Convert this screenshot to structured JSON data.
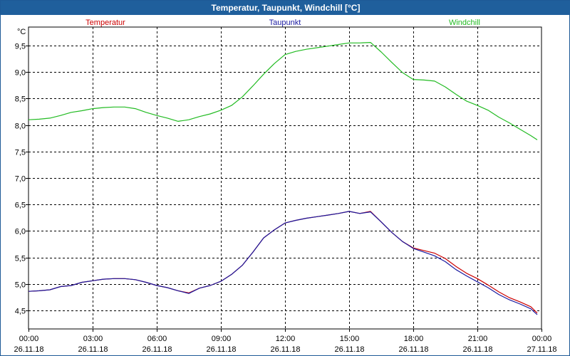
{
  "window": {
    "title": "Temperatur, Taupunkt, Windchill [°C]"
  },
  "chart_data": {
    "type": "line",
    "title": "Temperatur, Taupunkt, Windchill [°C]",
    "ylabel": "°C",
    "xlabel": "",
    "ylim": [
      4.15,
      9.85
    ],
    "xlim": [
      0,
      24
    ],
    "grid": true,
    "legend_placement": "top",
    "y_ticks": [
      "4,5",
      "5,0",
      "5,5",
      "6,0",
      "6,5",
      "7,0",
      "7,5",
      "8,0",
      "8,5",
      "9,0",
      "9,5"
    ],
    "y_tick_values": [
      4.5,
      5.0,
      5.5,
      6.0,
      6.5,
      7.0,
      7.5,
      8.0,
      8.5,
      9.0,
      9.5
    ],
    "x_ticks": [
      {
        "time": "00:00",
        "date": "26.11.18",
        "hour": 0
      },
      {
        "time": "03:00",
        "date": "26.11.18",
        "hour": 3
      },
      {
        "time": "06:00",
        "date": "26.11.18",
        "hour": 6
      },
      {
        "time": "09:00",
        "date": "26.11.18",
        "hour": 9
      },
      {
        "time": "12:00",
        "date": "26.11.18",
        "hour": 12
      },
      {
        "time": "15:00",
        "date": "26.11.18",
        "hour": 15
      },
      {
        "time": "18:00",
        "date": "26.11.18",
        "hour": 18
      },
      {
        "time": "21:00",
        "date": "26.11.18",
        "hour": 21
      },
      {
        "time": "00:00",
        "date": "27.11.18",
        "hour": 24
      }
    ],
    "x": [
      0,
      0.5,
      1,
      1.5,
      2,
      2.5,
      3,
      3.5,
      4,
      4.5,
      5,
      5.5,
      6,
      6.5,
      7,
      7.5,
      8,
      8.5,
      9,
      9.5,
      10,
      10.5,
      11,
      11.5,
      12,
      12.5,
      13,
      13.5,
      14,
      14.5,
      15,
      15.5,
      16,
      16.5,
      17,
      17.5,
      18,
      18.5,
      19,
      19.5,
      20,
      20.5,
      21,
      21.5,
      22,
      22.5,
      23,
      23.5,
      23.8
    ],
    "series": [
      {
        "name": "Temperatur",
        "color": "#cc0000",
        "values": [
          4.86,
          4.87,
          4.89,
          4.95,
          4.97,
          5.03,
          5.06,
          5.09,
          5.1,
          5.1,
          5.08,
          5.03,
          4.97,
          4.93,
          4.87,
          4.83,
          4.92,
          4.97,
          5.05,
          5.18,
          5.35,
          5.6,
          5.87,
          6.02,
          6.15,
          6.2,
          6.24,
          6.27,
          6.3,
          6.33,
          6.37,
          6.33,
          6.37,
          6.17,
          5.97,
          5.8,
          5.68,
          5.63,
          5.58,
          5.48,
          5.33,
          5.2,
          5.1,
          4.98,
          4.85,
          4.74,
          4.66,
          4.57,
          4.45
        ]
      },
      {
        "name": "Taupunkt",
        "color": "#1a1aa0",
        "values": [
          4.86,
          4.87,
          4.89,
          4.95,
          4.97,
          5.03,
          5.06,
          5.09,
          5.1,
          5.1,
          5.08,
          5.03,
          4.97,
          4.93,
          4.87,
          4.82,
          4.92,
          4.97,
          5.05,
          5.18,
          5.35,
          5.6,
          5.87,
          6.02,
          6.15,
          6.2,
          6.24,
          6.27,
          6.3,
          6.33,
          6.37,
          6.33,
          6.36,
          6.17,
          5.97,
          5.8,
          5.67,
          5.6,
          5.53,
          5.42,
          5.27,
          5.15,
          5.04,
          4.93,
          4.8,
          4.7,
          4.62,
          4.53,
          4.42
        ]
      },
      {
        "name": "Windchill",
        "color": "#22bb22",
        "values": [
          8.1,
          8.11,
          8.13,
          8.18,
          8.24,
          8.27,
          8.31,
          8.33,
          8.34,
          8.34,
          8.31,
          8.24,
          8.18,
          8.13,
          8.07,
          8.1,
          8.16,
          8.21,
          8.28,
          8.37,
          8.53,
          8.74,
          8.96,
          9.16,
          9.33,
          9.39,
          9.43,
          9.46,
          9.49,
          9.52,
          9.55,
          9.55,
          9.56,
          9.38,
          9.18,
          8.99,
          8.86,
          8.85,
          8.83,
          8.72,
          8.58,
          8.45,
          8.37,
          8.28,
          8.15,
          8.04,
          7.92,
          7.8,
          7.72
        ]
      }
    ]
  }
}
